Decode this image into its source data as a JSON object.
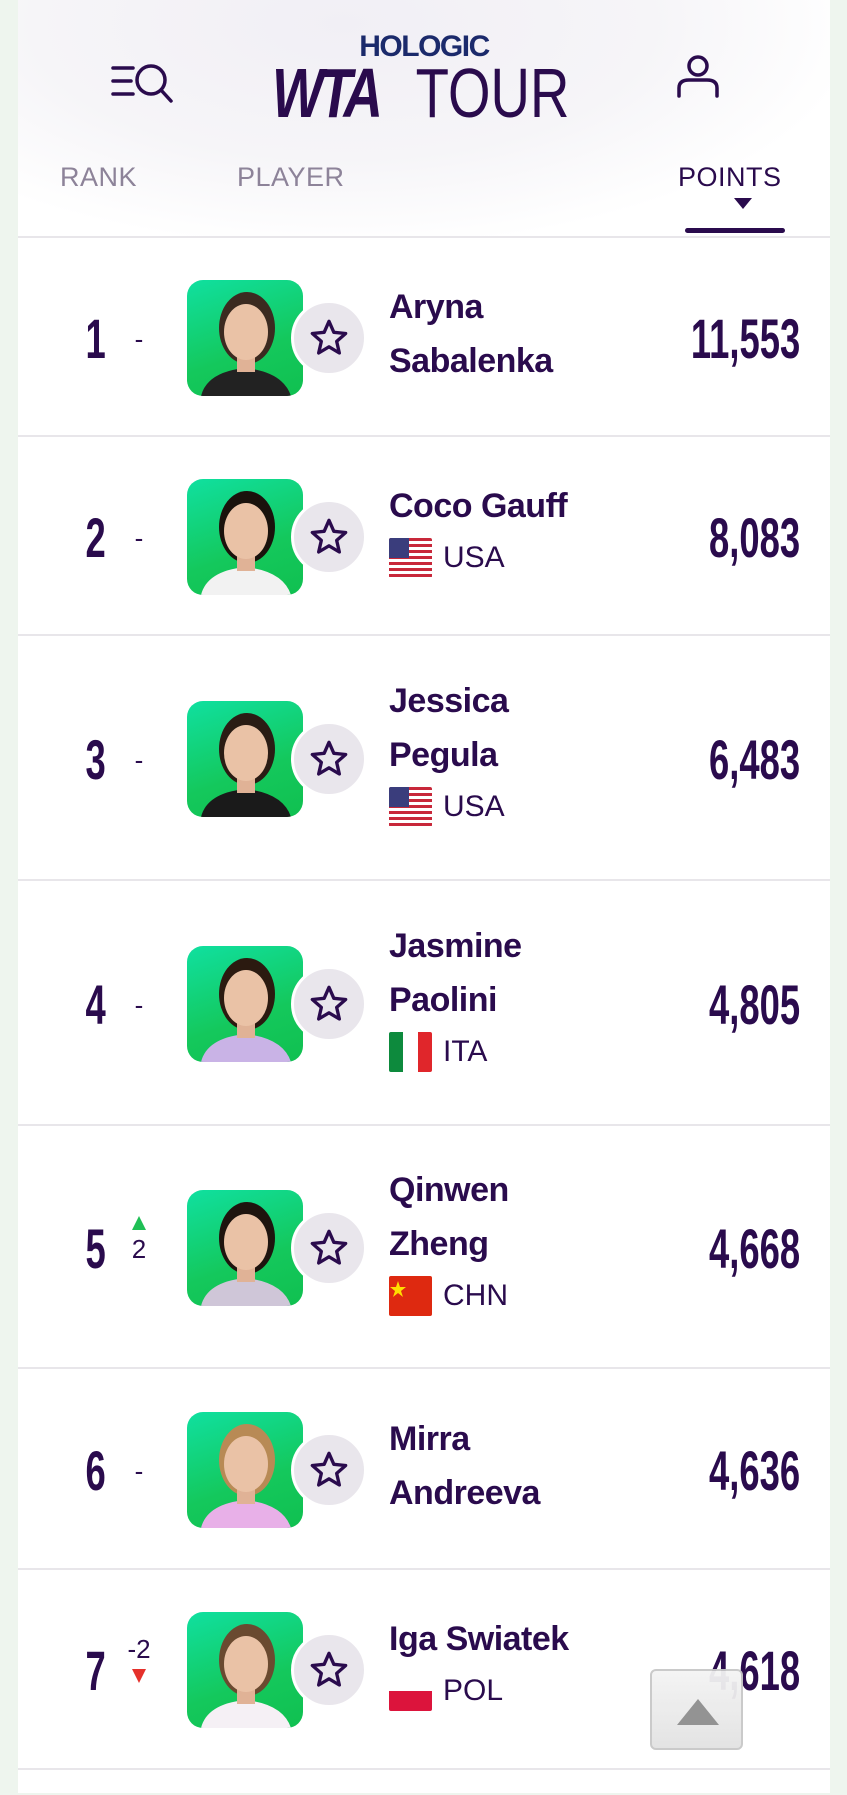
{
  "header": {
    "logo_top": "HOLOGIC",
    "logo_wta": "WTA",
    "logo_tour": "TOUR",
    "menu_search_icon": "menu-search-icon",
    "profile_icon": "user-icon"
  },
  "columns": {
    "rank": "RANK",
    "player": "PLAYER",
    "points": "POINTS",
    "sorted_by": "points",
    "sort_direction": "descending"
  },
  "colors": {
    "primary": "#2a0b4d",
    "photo_bg": "#14c85c",
    "up": "#1fbf55",
    "down": "#e5312b"
  },
  "players": [
    {
      "rank": "1",
      "change": "-",
      "first": "Aryna",
      "last": "Sabalenka",
      "country": "",
      "flag": "",
      "points": "11,553"
    },
    {
      "rank": "2",
      "change": "-",
      "first": "Coco Gauff",
      "last": "",
      "country": "USA",
      "flag": "us",
      "points": "8,083"
    },
    {
      "rank": "3",
      "change": "-",
      "first": "Jessica",
      "last": "Pegula",
      "country": "USA",
      "flag": "us",
      "points": "6,483"
    },
    {
      "rank": "4",
      "change": "-",
      "first": "Jasmine",
      "last": "Paolini",
      "country": "ITA",
      "flag": "it",
      "points": "4,805"
    },
    {
      "rank": "5",
      "change": "2",
      "direction": "up",
      "first": "Qinwen",
      "last": "Zheng",
      "country": "CHN",
      "flag": "cn",
      "points": "4,668"
    },
    {
      "rank": "6",
      "change": "-",
      "first": "Mirra",
      "last": "Andreeva",
      "country": "",
      "flag": "",
      "points": "4,636"
    },
    {
      "rank": "7",
      "change": "-2",
      "direction": "down",
      "first": "Iga Swiatek",
      "last": "",
      "country": "POL",
      "flag": "pl",
      "points": "4,618"
    }
  ],
  "scroll_top_icon": "arrow-up-icon"
}
